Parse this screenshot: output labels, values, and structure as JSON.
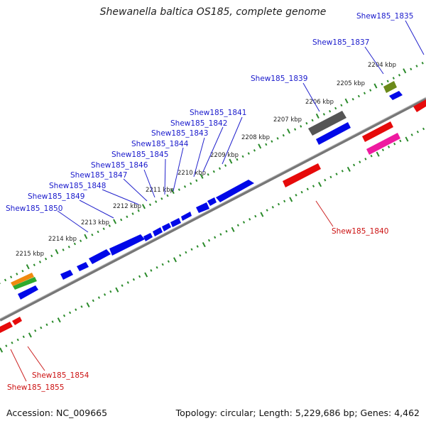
{
  "title": "Shewanella baltica OS185, complete genome",
  "footer": {
    "accession": "Accession: NC_009665",
    "summary": "Topology: circular; Length: 5,229,686 bp; Genes: 4,462"
  },
  "colors": {
    "forward_gene": "#0a10e6",
    "reverse_gene": "#e60a0a",
    "label_forward": "#1a1acc",
    "label_reverse": "#cc1111",
    "tick": "#2a8a2a",
    "backbone": "#777777"
  },
  "tick_labels": [
    "2204 kbp",
    "2205 kbp",
    "2206 kbp",
    "2207 kbp",
    "2208 kbp",
    "2209 kbp",
    "2210 kbp",
    "2211 kbp",
    "2212 kbp",
    "2213 kbp",
    "2214 kbp",
    "2215 kbp"
  ],
  "gene_labels": {
    "forward": [
      "Shew185_1835",
      "Shew185_1837",
      "Shew185_1839",
      "Shew185_1841",
      "Shew185_1842",
      "Shew185_1843",
      "Shew185_1844",
      "Shew185_1845",
      "Shew185_1846",
      "Shew185_1847",
      "Shew185_1848",
      "Shew185_1849",
      "Shew185_1850"
    ],
    "reverse": [
      "Shew185_1840",
      "Shew185_1854",
      "Shew185_1855"
    ]
  }
}
